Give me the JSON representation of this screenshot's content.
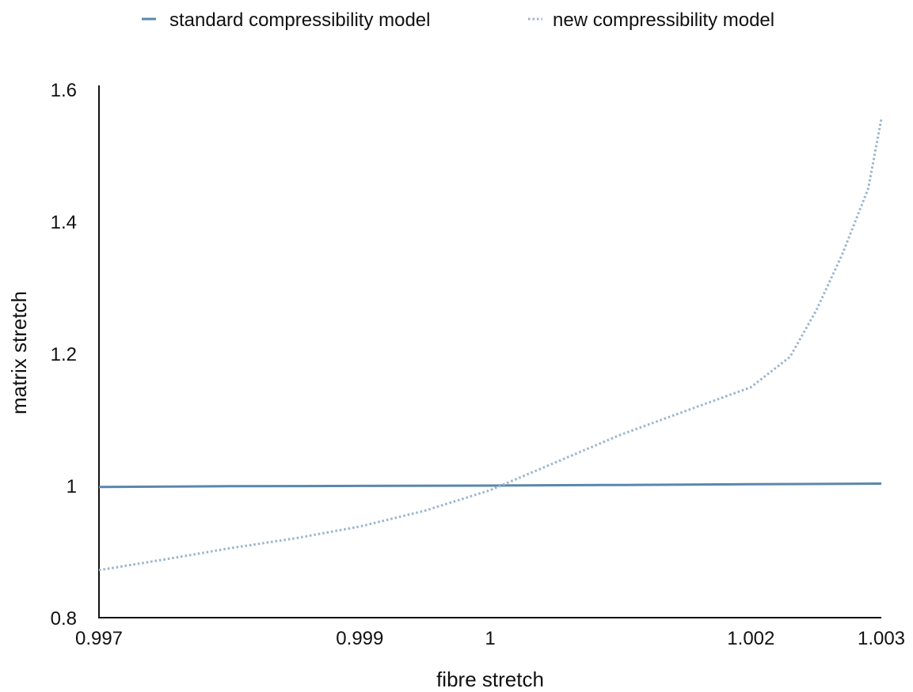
{
  "chart_data": {
    "type": "line",
    "xlabel": "fibre stretch",
    "ylabel": "matrix stretch",
    "xlim": [
      0.997,
      1.003
    ],
    "ylim": [
      0.8,
      1.6
    ],
    "x_ticks": [
      0.997,
      0.999,
      1,
      1.002,
      1.003
    ],
    "x_tick_labels": [
      "0.997",
      "0.999",
      "1",
      "1.002",
      "1.003"
    ],
    "y_ticks": [
      0.8,
      1,
      1.2,
      1.4,
      1.6
    ],
    "y_tick_labels": [
      "0.8",
      "1",
      "1.2",
      "1.4",
      "1.6"
    ],
    "grid": false,
    "legend_position": "top-center",
    "series": [
      {
        "name": "standard compressibility model",
        "color": "#5a87ad",
        "style": "solid",
        "x": [
          0.997,
          0.998,
          0.999,
          1.0,
          1.001,
          1.002,
          1.003
        ],
        "y": [
          0.998,
          0.999,
          0.9995,
          1.0,
          1.001,
          1.002,
          1.003
        ]
      },
      {
        "name": "new compressibility model",
        "color": "#9ab4cb",
        "style": "dotted",
        "x": [
          0.997,
          0.9975,
          0.998,
          0.9985,
          0.999,
          0.9995,
          1.0,
          1.0005,
          1.001,
          1.0015,
          1.002,
          1.0023,
          1.0025,
          1.0027,
          1.0029,
          1.003
        ],
        "y": [
          0.872,
          0.888,
          0.905,
          0.92,
          0.938,
          0.962,
          0.993,
          1.035,
          1.077,
          1.113,
          1.149,
          1.195,
          1.265,
          1.35,
          1.45,
          1.555
        ]
      }
    ]
  }
}
